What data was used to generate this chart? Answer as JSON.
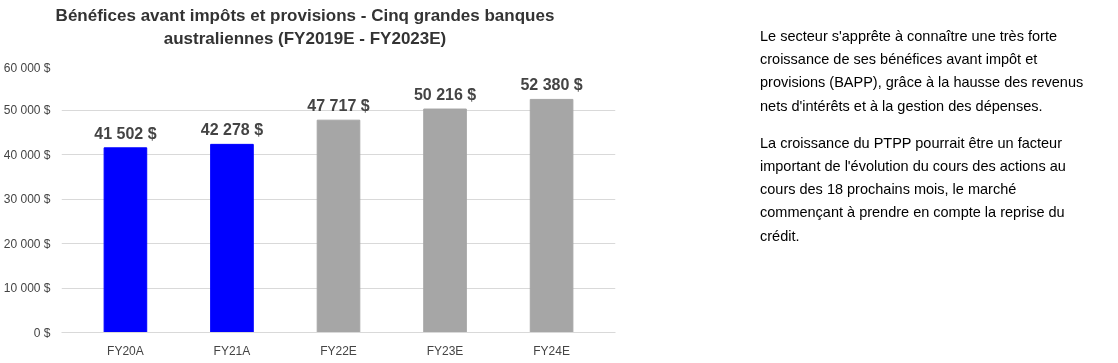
{
  "chart_data": {
    "type": "bar",
    "title": "Bénéfices avant impôts et provisions - Cinq grandes banques australiennes (FY2019E - FY2023E)",
    "categories": [
      "FY20A",
      "FY21A",
      "FY22E",
      "FY23E",
      "FY24E"
    ],
    "values": [
      41502,
      42278,
      47717,
      50216,
      52380
    ],
    "colors": [
      "#0000ff",
      "#0000ff",
      "#a6a6a6",
      "#a6a6a6",
      "#a6a6a6"
    ],
    "value_labels": [
      "41 502 $",
      "42 278 $",
      "47 717 $",
      "50 216 $",
      "52 380 $"
    ],
    "ylim": [
      0,
      60000
    ],
    "yticks": [
      {
        "value": 0,
        "label": "0 $"
      },
      {
        "value": 10000,
        "label": "10 000 $"
      },
      {
        "value": 20000,
        "label": "20 000 $"
      },
      {
        "value": 30000,
        "label": "30 000 $"
      },
      {
        "value": 40000,
        "label": "40 000 $"
      },
      {
        "value": 50000,
        "label": "50 000 $"
      },
      {
        "value": 60000,
        "label": "60 000 $"
      }
    ],
    "grid": "y",
    "annotations": [
      "Le secteur s'apprête à connaître une très forte croissance de ses bénéfices avant impôt et provisions (BAPP), grâce à la hausse des revenus nets d'intérêts et à la gestion des dépenses.",
      "La croissance du PTPP pourrait être un facteur important de l'évolution du cours des actions au cours des 18 prochains mois, le marché commençant à prendre en compte la reprise du crédit."
    ]
  }
}
